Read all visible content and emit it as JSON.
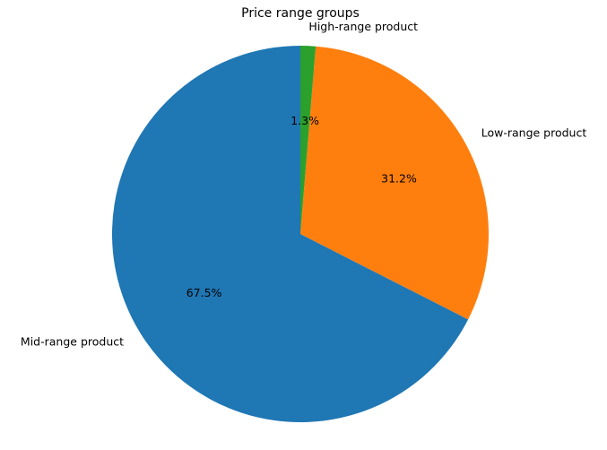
{
  "chart_data": {
    "type": "pie",
    "title": "Price range groups",
    "slices": [
      {
        "label": "Mid-range product",
        "value": 67.5,
        "pct_label": "67.5%",
        "color": "#1f77b4"
      },
      {
        "label": "Low-range product",
        "value": 31.2,
        "pct_label": "31.2%",
        "color": "#ff7f0e"
      },
      {
        "label": "High-range product",
        "value": 1.3,
        "pct_label": "1.3%",
        "color": "#2ca02c"
      }
    ]
  }
}
